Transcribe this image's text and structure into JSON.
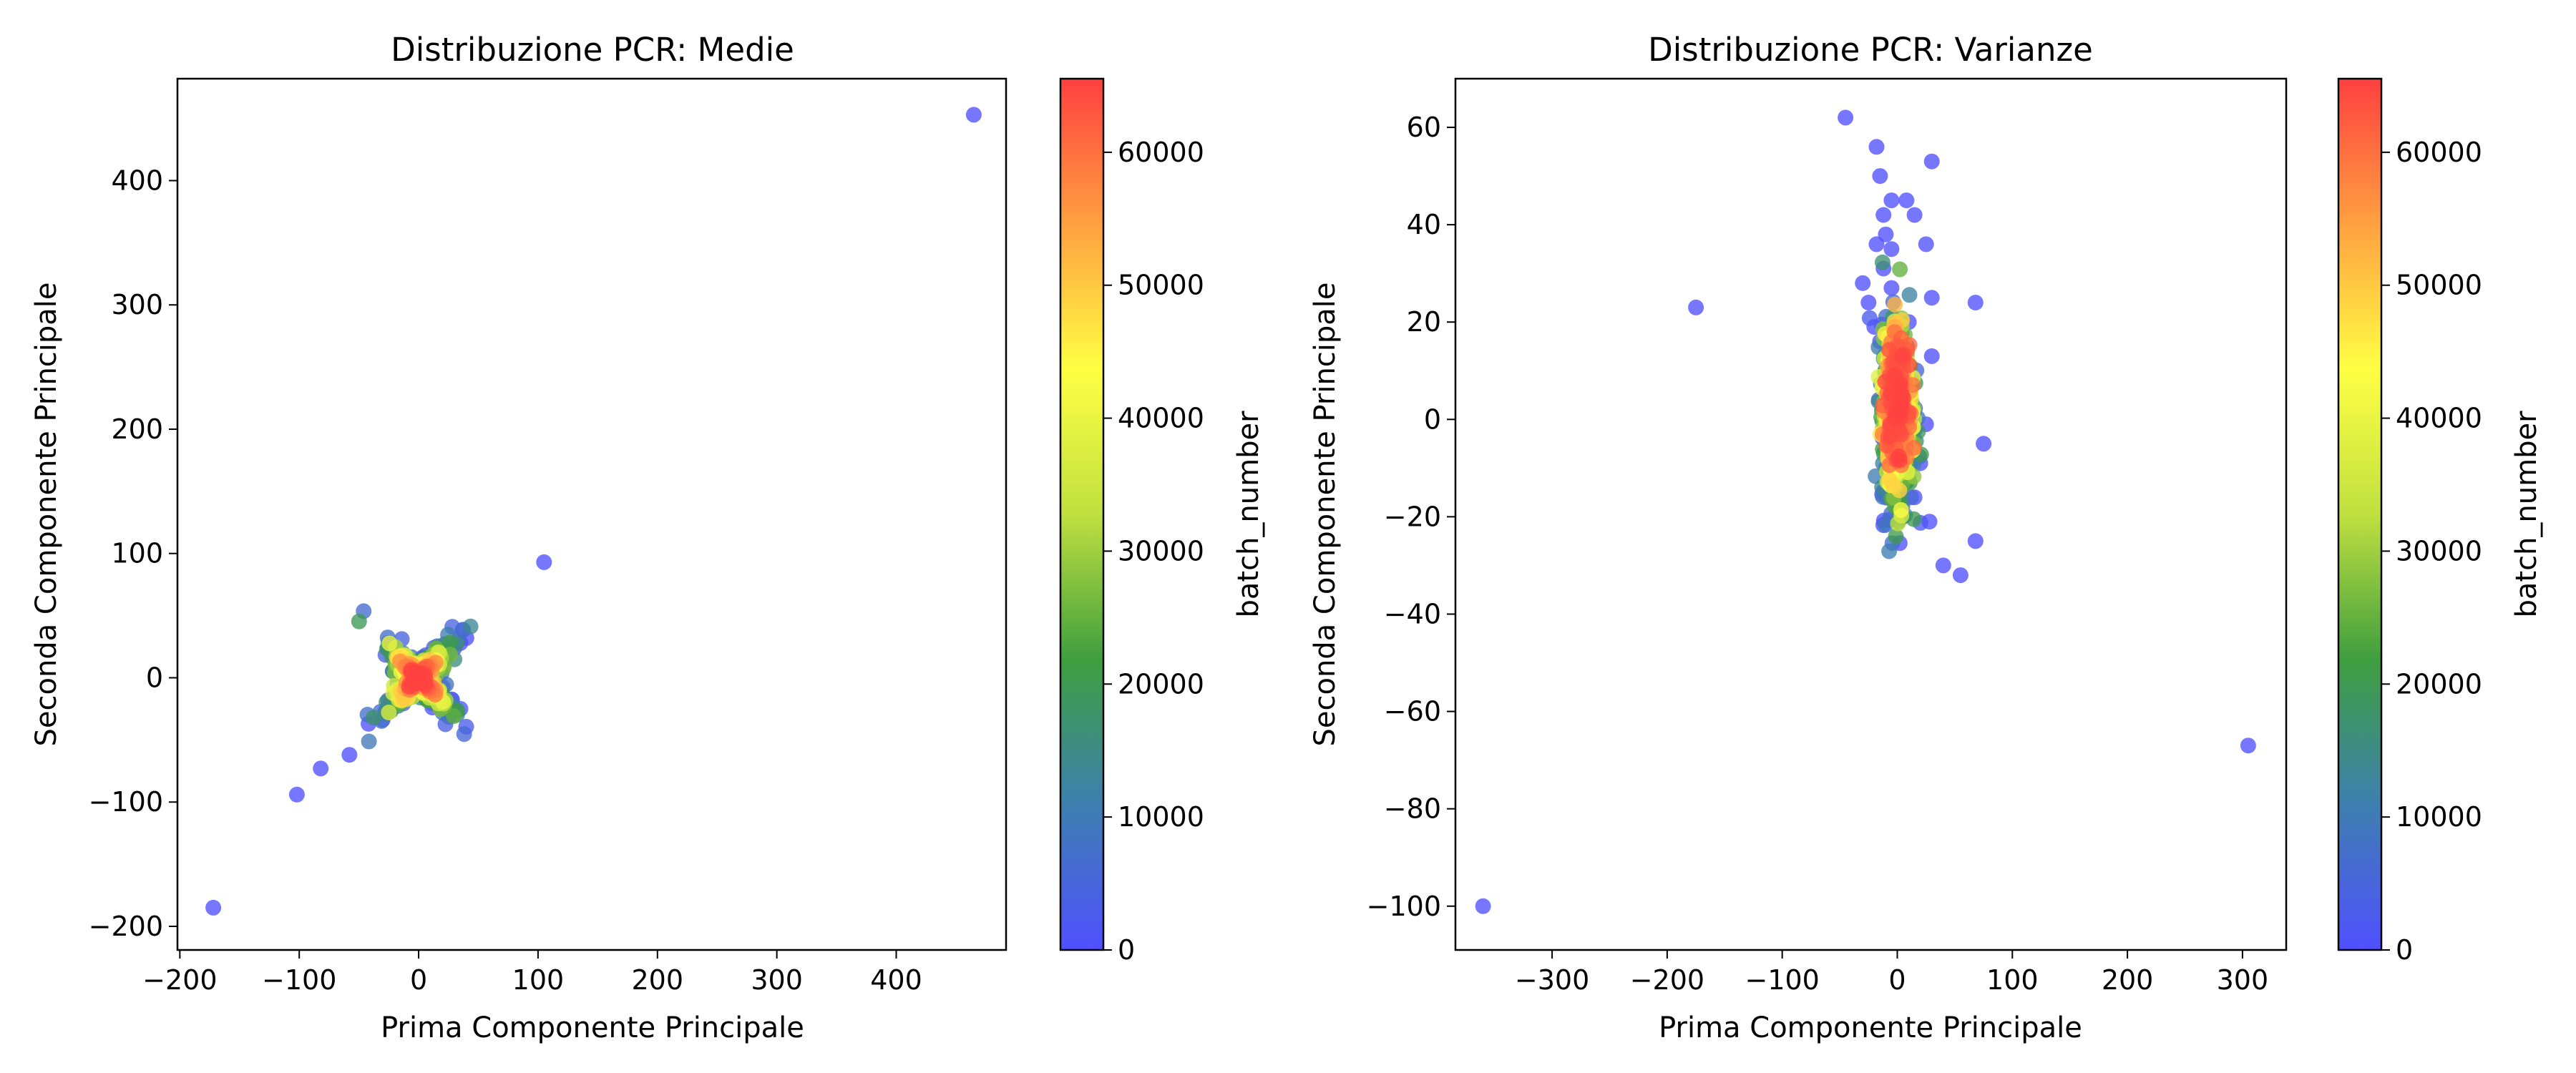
{
  "colorbar": {
    "label": "batch_number",
    "ticks": [
      0,
      10000,
      20000,
      30000,
      40000,
      50000,
      60000
    ],
    "range": [
      0,
      65535
    ],
    "colors": [
      "#5050ff",
      "#3e7fb0",
      "#3f9e3f",
      "#c0e040",
      "#ffff44",
      "#ffa040",
      "#ff4040"
    ]
  },
  "chart_data": [
    {
      "type": "scatter",
      "title": "Distribuzione PCR: Medie",
      "xlabel": "Prima Componente Principale",
      "ylabel": "Seconda Componente Principale",
      "xlim": [
        -202,
        492
      ],
      "ylim": [
        -219,
        482
      ],
      "xticks": [
        -200,
        -100,
        0,
        100,
        200,
        300,
        400
      ],
      "yticks": [
        -200,
        -100,
        0,
        100,
        200,
        300,
        400
      ],
      "color_by": "batch_number",
      "outliers": [
        {
          "x": 465,
          "y": 453,
          "batch": 0
        },
        {
          "x": 105,
          "y": 93,
          "batch": 0
        },
        {
          "x": -172,
          "y": -185,
          "batch": 0
        },
        {
          "x": -102,
          "y": -94,
          "batch": 0
        },
        {
          "x": -82,
          "y": -73,
          "batch": 0
        },
        {
          "x": -58,
          "y": -62,
          "batch": 0
        },
        {
          "x": -42,
          "y": -37,
          "batch": 0
        },
        {
          "x": 40,
          "y": 32,
          "batch": 0
        },
        {
          "x": 35,
          "y": 28,
          "batch": 0
        },
        {
          "x": 30,
          "y": 24,
          "batch": 0
        },
        {
          "x": 25,
          "y": 20,
          "batch": 0
        },
        {
          "x": 18,
          "y": 15,
          "batch": 0
        },
        {
          "x": 35,
          "y": -25,
          "batch": 2000
        },
        {
          "x": -20,
          "y": -20,
          "batch": 1000
        }
      ],
      "cluster": {
        "center": [
          0,
          0
        ],
        "spread": [
          20,
          20
        ],
        "note": "dense cluster: outer blue/green cross shape, inner yellow/orange, red core near origin"
      }
    },
    {
      "type": "scatter",
      "title": "Distribuzione PCR: Varianze",
      "xlabel": "Prima Componente Principale",
      "ylabel": "Seconda Componente Principale",
      "xlim": [
        -384,
        338
      ],
      "ylim": [
        -109,
        70
      ],
      "xticks": [
        -300,
        -200,
        -100,
        0,
        100,
        200,
        300
      ],
      "yticks": [
        -100,
        -80,
        -60,
        -40,
        -20,
        0,
        20,
        40,
        60
      ],
      "color_by": "batch_number",
      "outliers": [
        {
          "x": -360,
          "y": -100,
          "batch": 0
        },
        {
          "x": 305,
          "y": -67,
          "batch": 0
        },
        {
          "x": -175,
          "y": 23,
          "batch": 0
        },
        {
          "x": -45,
          "y": 62,
          "batch": 0
        },
        {
          "x": 30,
          "y": 53,
          "batch": 0
        },
        {
          "x": -18,
          "y": 56,
          "batch": 0
        },
        {
          "x": -15,
          "y": 50,
          "batch": 0
        },
        {
          "x": 75,
          "y": -5,
          "batch": 0
        },
        {
          "x": 68,
          "y": 24,
          "batch": 0
        },
        {
          "x": 68,
          "y": -25,
          "batch": 0
        },
        {
          "x": 40,
          "y": -30,
          "batch": 0
        },
        {
          "x": 55,
          "y": -32,
          "batch": 0
        },
        {
          "x": 28,
          "y": -21,
          "batch": 0
        },
        {
          "x": 30,
          "y": 13,
          "batch": 0
        },
        {
          "x": 30,
          "y": 25,
          "batch": 0
        },
        {
          "x": 25,
          "y": 36,
          "batch": 0
        },
        {
          "x": 15,
          "y": 42,
          "batch": 0
        },
        {
          "x": 8,
          "y": 45,
          "batch": 0
        },
        {
          "x": -5,
          "y": 45,
          "batch": 0
        },
        {
          "x": -12,
          "y": 42,
          "batch": 0
        },
        {
          "x": -10,
          "y": 38,
          "batch": 0
        },
        {
          "x": -18,
          "y": 36,
          "batch": 0
        },
        {
          "x": -5,
          "y": 35,
          "batch": 0
        },
        {
          "x": -12,
          "y": 31,
          "batch": 0
        },
        {
          "x": -30,
          "y": 28,
          "batch": 0
        },
        {
          "x": -25,
          "y": 24,
          "batch": 0
        },
        {
          "x": -5,
          "y": 27,
          "batch": 0
        },
        {
          "x": -20,
          "y": 19,
          "batch": 0
        },
        {
          "x": 10,
          "y": 20,
          "batch": 0
        },
        {
          "x": -15,
          "y": 16,
          "batch": 0
        },
        {
          "x": 25,
          "y": -1,
          "batch": 0
        },
        {
          "x": 15,
          "y": -16,
          "batch": 0
        },
        {
          "x": 5,
          "y": -20,
          "batch": 0
        },
        {
          "x": 20,
          "y": -9,
          "batch": 0
        }
      ],
      "cluster": {
        "center": [
          0,
          0
        ],
        "spread": [
          6,
          10
        ],
        "note": "narrow vertical cluster: blue/green outer, yellow and red core near origin"
      }
    }
  ]
}
